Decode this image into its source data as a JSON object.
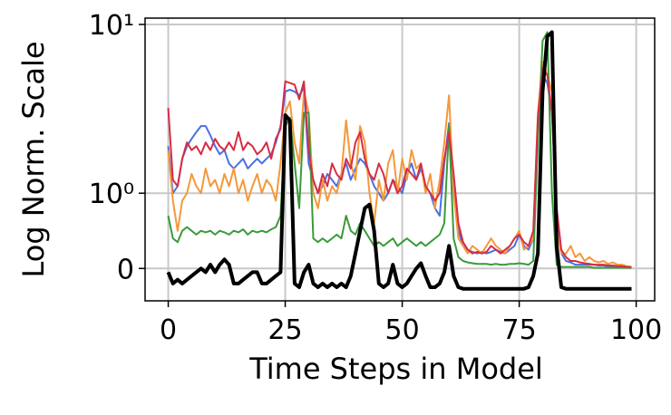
{
  "chart_data": {
    "type": "line",
    "xlabel": "Time Steps in Model",
    "ylabel": "Log Norm. Scale",
    "yscale": "symlog",
    "grid": true,
    "xlim": [
      -4.95,
      103.95
    ],
    "xticks": [
      0,
      25,
      50,
      75,
      100
    ],
    "ylim": [
      -0.43,
      10.9
    ],
    "yticks": [
      0,
      {
        "value": 1,
        "label": "10⁰"
      },
      {
        "value": 10,
        "label": "10¹"
      }
    ],
    "x": [
      0,
      1,
      2,
      3,
      4,
      5,
      6,
      7,
      8,
      9,
      10,
      11,
      12,
      13,
      14,
      15,
      16,
      17,
      18,
      19,
      20,
      21,
      22,
      23,
      24,
      25,
      26,
      27,
      28,
      29,
      30,
      31,
      32,
      33,
      34,
      35,
      36,
      37,
      38,
      39,
      40,
      41,
      42,
      43,
      44,
      45,
      46,
      47,
      48,
      49,
      50,
      51,
      52,
      53,
      54,
      55,
      56,
      57,
      58,
      59,
      60,
      61,
      62,
      63,
      64,
      65,
      66,
      67,
      68,
      69,
      70,
      71,
      72,
      73,
      74,
      75,
      76,
      77,
      78,
      79,
      80,
      81,
      82,
      83,
      84,
      85,
      86,
      87,
      88,
      89,
      90,
      91,
      92,
      93,
      94,
      95,
      96,
      97,
      98,
      99
    ],
    "series": [
      {
        "color": "#4a6fe3",
        "width": 2,
        "values": [
          1.9,
          1.0,
          1.1,
          1.6,
          1.9,
          2.1,
          2.3,
          2.5,
          2.5,
          2.2,
          1.9,
          1.7,
          1.8,
          1.5,
          1.4,
          1.5,
          1.6,
          1.4,
          1.5,
          1.6,
          1.5,
          1.6,
          1.7,
          2.0,
          2.5,
          4.0,
          4.1,
          4.0,
          3.8,
          4.2,
          1.5,
          1.2,
          1.0,
          1.1,
          1.3,
          1.2,
          1.1,
          1.3,
          1.5,
          1.2,
          1.4,
          1.6,
          1.5,
          1.3,
          1.1,
          1.0,
          0.9,
          1.0,
          1.2,
          1.1,
          1.0,
          1.3,
          1.5,
          1.2,
          1.4,
          1.1,
          1.0,
          0.8,
          0.7,
          1.5,
          2.6,
          1.2,
          0.5,
          0.3,
          0.25,
          0.22,
          0.2,
          0.22,
          0.2,
          0.22,
          0.25,
          0.22,
          0.2,
          0.25,
          0.3,
          0.45,
          0.3,
          0.25,
          0.4,
          2.5,
          5.0,
          4.5,
          3.0,
          0.8,
          0.2,
          0.1,
          0.08,
          0.05,
          0.05,
          0.05,
          0.05,
          0.05,
          0.04,
          0.04,
          0.03,
          0.03,
          0.03,
          0.02,
          0.02,
          0.02
        ]
      },
      {
        "color": "#f5983a",
        "width": 2,
        "values": [
          1.8,
          0.9,
          0.5,
          0.9,
          1.0,
          1.3,
          1.1,
          1.0,
          1.4,
          1.1,
          1.2,
          1.0,
          1.3,
          1.1,
          1.4,
          1.0,
          1.2,
          0.9,
          1.1,
          1.3,
          1.0,
          1.2,
          1.1,
          0.9,
          1.5,
          3.0,
          3.5,
          2.0,
          1.5,
          4.0,
          3.0,
          1.0,
          0.8,
          1.2,
          0.9,
          1.1,
          1.0,
          1.3,
          2.7,
          1.5,
          1.2,
          2.5,
          2.0,
          1.0,
          0.6,
          1.2,
          0.9,
          1.5,
          1.8,
          1.0,
          1.6,
          1.2,
          1.8,
          1.4,
          1.5,
          1.0,
          1.3,
          0.8,
          1.2,
          2.0,
          3.8,
          1.0,
          0.4,
          0.3,
          0.2,
          0.3,
          0.25,
          0.2,
          0.3,
          0.4,
          0.3,
          0.25,
          0.2,
          0.3,
          0.4,
          0.5,
          0.25,
          0.3,
          0.4,
          3.0,
          6.0,
          5.0,
          4.0,
          0.5,
          0.2,
          0.2,
          0.3,
          0.15,
          0.2,
          0.1,
          0.15,
          0.1,
          0.08,
          0.1,
          0.06,
          0.08,
          0.05,
          0.05,
          0.03,
          0.02
        ]
      },
      {
        "color": "#3a9a3a",
        "width": 2,
        "values": [
          0.7,
          0.4,
          0.35,
          0.5,
          0.55,
          0.5,
          0.45,
          0.5,
          0.48,
          0.5,
          0.45,
          0.5,
          0.48,
          0.45,
          0.5,
          0.48,
          0.52,
          0.45,
          0.5,
          0.48,
          0.5,
          0.48,
          0.52,
          0.55,
          0.7,
          2.5,
          2.8,
          1.5,
          0.8,
          3.0,
          3.0,
          0.4,
          0.35,
          0.4,
          0.35,
          0.4,
          0.45,
          0.4,
          0.7,
          0.5,
          0.45,
          0.6,
          0.5,
          0.4,
          0.3,
          0.35,
          0.3,
          0.35,
          0.4,
          0.3,
          0.35,
          0.4,
          0.35,
          0.3,
          0.35,
          0.3,
          0.35,
          0.4,
          0.45,
          0.6,
          2.5,
          0.4,
          0.15,
          0.1,
          0.08,
          0.07,
          0.06,
          0.06,
          0.06,
          0.05,
          0.06,
          0.05,
          0.05,
          0.06,
          0.06,
          0.07,
          0.06,
          0.05,
          0.1,
          2.0,
          8.0,
          9.0,
          1.0,
          0.05,
          0.02,
          0.02,
          0.02,
          0.02,
          0.02,
          0.02,
          0.02,
          0.01,
          0.01,
          0.01,
          0.01,
          0.01,
          0.01,
          0.01,
          0.01,
          0.01
        ]
      },
      {
        "color": "#d62d46",
        "width": 2,
        "values": [
          3.2,
          1.2,
          1.1,
          1.6,
          2.0,
          1.8,
          1.9,
          1.7,
          2.0,
          1.8,
          2.1,
          1.9,
          1.8,
          2.0,
          1.8,
          2.3,
          1.8,
          2.0,
          1.9,
          1.7,
          1.8,
          2.0,
          1.6,
          2.1,
          2.4,
          4.6,
          4.5,
          4.4,
          3.6,
          4.6,
          1.8,
          1.2,
          1.0,
          1.3,
          1.1,
          1.5,
          1.3,
          1.2,
          1.6,
          1.4,
          2.0,
          2.3,
          1.6,
          1.3,
          1.2,
          1.5,
          1.3,
          1.0,
          1.2,
          1.0,
          1.1,
          1.4,
          1.3,
          1.2,
          1.5,
          1.1,
          1.0,
          0.9,
          1.0,
          1.6,
          2.3,
          1.3,
          0.6,
          0.35,
          0.25,
          0.2,
          0.22,
          0.2,
          0.22,
          0.3,
          0.25,
          0.2,
          0.25,
          0.3,
          0.4,
          0.45,
          0.35,
          0.3,
          0.5,
          2.8,
          5.5,
          5.0,
          3.0,
          0.8,
          0.25,
          0.15,
          0.1,
          0.1,
          0.08,
          0.07,
          0.06,
          0.05,
          0.05,
          0.05,
          0.04,
          0.04,
          0.03,
          0.03,
          0.02,
          0.02
        ]
      },
      {
        "color": "#000000",
        "width": 4,
        "values": [
          -0.05,
          -0.2,
          -0.15,
          -0.2,
          -0.15,
          -0.1,
          -0.05,
          0.0,
          -0.05,
          0.05,
          -0.05,
          0.05,
          0.12,
          0.05,
          -0.2,
          -0.2,
          -0.15,
          -0.1,
          -0.05,
          -0.05,
          -0.2,
          -0.2,
          -0.15,
          -0.1,
          -0.05,
          2.9,
          2.7,
          -0.2,
          -0.25,
          -0.05,
          0.05,
          -0.2,
          -0.25,
          -0.2,
          -0.25,
          -0.2,
          -0.25,
          -0.2,
          -0.25,
          -0.1,
          0.2,
          0.5,
          0.8,
          0.85,
          0.5,
          -0.2,
          -0.25,
          -0.2,
          0.05,
          -0.2,
          -0.25,
          -0.2,
          -0.1,
          0.0,
          0.07,
          -0.1,
          -0.25,
          -0.25,
          -0.2,
          -0.05,
          0.3,
          -0.1,
          -0.25,
          -0.27,
          -0.27,
          -0.27,
          -0.27,
          -0.27,
          -0.27,
          -0.27,
          -0.27,
          -0.27,
          -0.27,
          -0.27,
          -0.27,
          -0.27,
          -0.27,
          -0.25,
          -0.1,
          0.2,
          4.0,
          8.5,
          9.0,
          0.3,
          -0.25,
          -0.27,
          -0.27,
          -0.27,
          -0.27,
          -0.27,
          -0.27,
          -0.27,
          -0.27,
          -0.27,
          -0.27,
          -0.27,
          -0.27,
          -0.27,
          -0.27,
          -0.27
        ]
      }
    ]
  }
}
